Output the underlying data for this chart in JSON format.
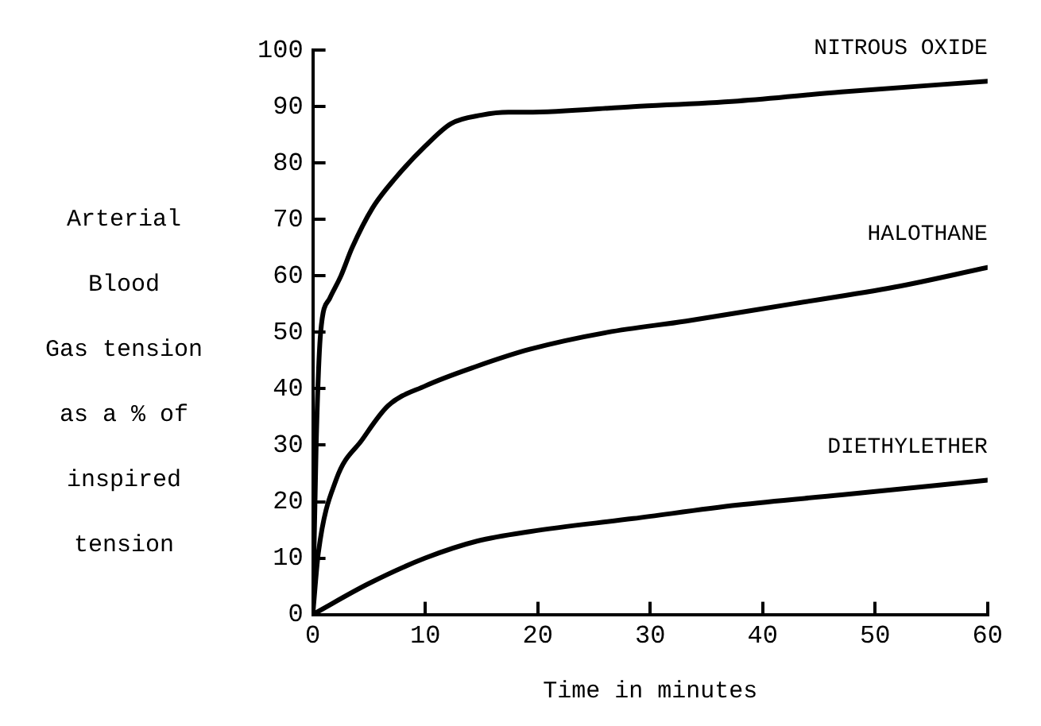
{
  "chart_data": {
    "type": "line",
    "xlabel": "Time in minutes",
    "ylabel": "Arterial\nBlood\nGas tension\nas a % of\ninspired\ntension",
    "xlim": [
      0,
      60
    ],
    "xticks": [
      0,
      10,
      20,
      30,
      40,
      50,
      60
    ],
    "ylim": [
      0,
      100
    ],
    "yticks": [
      0,
      10,
      20,
      30,
      40,
      50,
      60,
      70,
      80,
      90,
      100
    ],
    "grid": false,
    "legend": false,
    "marker": "none",
    "line_style": "solid",
    "series": [
      {
        "name": "NITROUS OXIDE",
        "color": "#000000",
        "x": [
          0,
          0.3,
          0.7,
          1.5,
          2.5,
          3.5,
          5.3,
          7.2,
          10,
          12.3,
          15,
          17.4,
          19,
          28.5,
          37.8,
          47,
          60
        ],
        "values": [
          0,
          30,
          50,
          56,
          60,
          65,
          72,
          77,
          83,
          87,
          88.5,
          89,
          89,
          90,
          91,
          92.6,
          94.5
        ]
      },
      {
        "name": "HALOTHANE",
        "color": "#000000",
        "x": [
          0,
          0.5,
          2.1,
          4.4,
          6.7,
          10,
          14.6,
          19.3,
          26.2,
          33.2,
          42.5,
          51.7,
          60
        ],
        "values": [
          0,
          11,
          24,
          31,
          37,
          40.5,
          44,
          47,
          50,
          52,
          55,
          58,
          61.5
        ]
      },
      {
        "name": "DIETHYLETHER",
        "color": "#000000",
        "x": [
          0,
          5,
          10,
          14.6,
          19.3,
          28.5,
          37.8,
          47,
          60
        ],
        "values": [
          0,
          5.5,
          10,
          13,
          14.7,
          17,
          19.4,
          21.2,
          23.8
        ]
      }
    ]
  }
}
